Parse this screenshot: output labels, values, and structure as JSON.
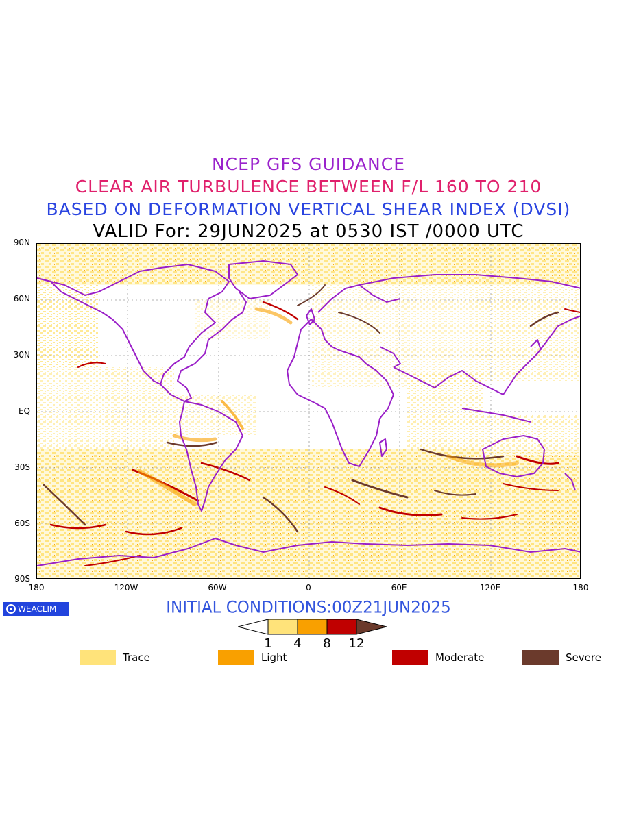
{
  "titles": {
    "line1": "NCEP GFS GUIDANCE",
    "line2": "CLEAR AIR TURBULENCE BETWEEN F/L 160 TO 210",
    "line3": "BASED ON DEFORMATION VERTICAL SHEAR INDEX (DVSI)",
    "line4": "VALID For: 29JUN2025 at 0530 IST /0000 UTC"
  },
  "colors": {
    "line1": "#9a22cc",
    "line2": "#e0206c",
    "line3": "#2a44e0",
    "line4": "#000000",
    "coast": "#9a1fc8",
    "trace": "#ffe37a",
    "light": "#f9a000",
    "moderate": "#c00000",
    "severe": "#6b3a2c",
    "logo": "#2244dd",
    "init": "#3355dd"
  },
  "axes": {
    "y_labels": [
      "90N",
      "60N",
      "30N",
      "EQ",
      "30S",
      "60S",
      "90S"
    ],
    "x_labels": [
      "180",
      "120W",
      "60W",
      "0",
      "60E",
      "120E",
      "180"
    ]
  },
  "logo_text": "WEACLIM",
  "initial_conditions": "INITIAL CONDITIONS:00Z21JUN2025",
  "colorbar": {
    "ticks": [
      "1",
      "4",
      "8",
      "12"
    ]
  },
  "legend": [
    {
      "label": "Trace",
      "color": "#ffe37a"
    },
    {
      "label": "Light",
      "color": "#f9a000"
    },
    {
      "label": "Moderate",
      "color": "#c00000"
    },
    {
      "label": "Severe",
      "color": "#6b3a2c"
    }
  ]
}
